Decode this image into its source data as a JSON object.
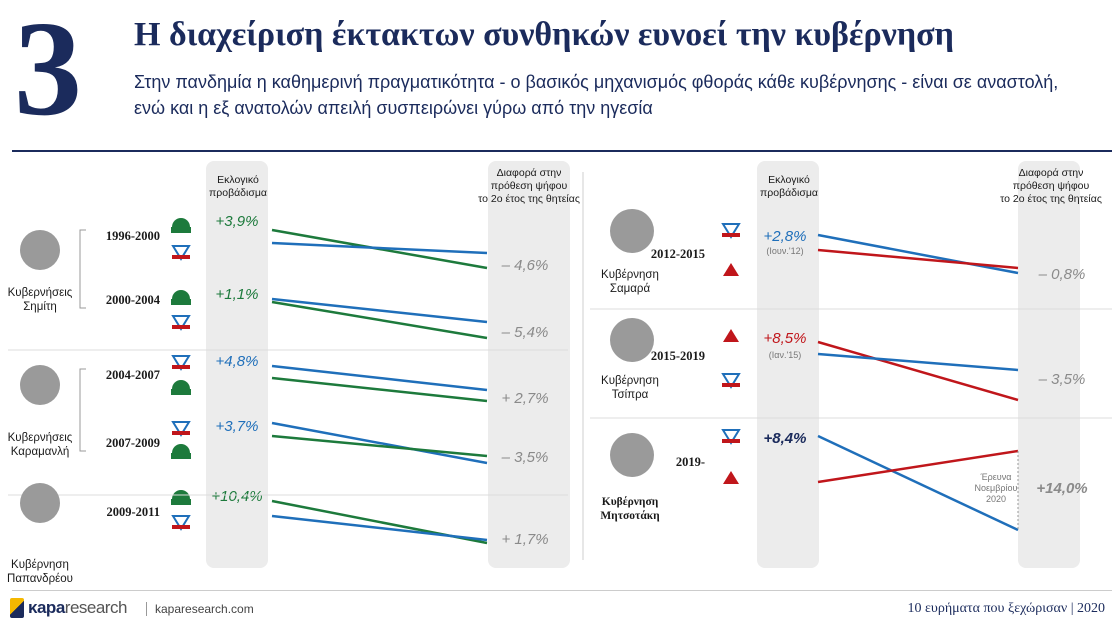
{
  "header": {
    "number": "3",
    "title": "Η διαχείριση έκτακτων συνθηκών ευνοεί την κυβέρνηση",
    "subtitle": "Στην πανδημία η καθημερινή πραγματικότητα - ο βασικός μηχανισμός φθοράς κάθε κυβέρνησης - είναι σε αναστολή, ενώ και η εξ ανατολών απειλή συσπειρώνει γύρω από την ηγεσία"
  },
  "columns": {
    "lead_header": [
      "Εκλογικό",
      "προβάδισμα"
    ],
    "diff_header": [
      "Διαφορά στην",
      "πρόθεση ψήφου",
      "το 2ο έτος της θητείας"
    ]
  },
  "colors": {
    "pasok": "#1d7a3c",
    "nd": "#1f6fba",
    "syriza": "#c0161b",
    "navy": "#1b2b5c",
    "band": "#ececec"
  },
  "chart_data": {
    "type": "slope",
    "left_panel": [
      {
        "government": [
          "Κυβερνήσεις",
          "Σημίτη"
        ],
        "period": "1996-2000",
        "parties": [
          "ΠΑΣΟΚ",
          "ΝΔ"
        ],
        "lead": "+3,9",
        "diff": "– 4,6",
        "diff_value": -4.6
      },
      {
        "government": [
          "Κυβερνήσεις",
          "Σημίτη"
        ],
        "period": "2000-2004",
        "parties": [
          "ΠΑΣΟΚ",
          "ΝΔ"
        ],
        "lead": "+1,1",
        "diff": "– 5,4",
        "diff_value": -5.4
      },
      {
        "government": [
          "Κυβερνήσεις",
          "Καραμανλή"
        ],
        "period": "2004-2007",
        "parties": [
          "ΝΔ",
          "ΠΑΣΟΚ"
        ],
        "lead": "+4,8",
        "diff": "+ 2,7",
        "diff_value": 2.7
      },
      {
        "government": [
          "Κυβερνήσεις",
          "Καραμανλή"
        ],
        "period": "2007-2009",
        "parties": [
          "ΝΔ",
          "ΠΑΣΟΚ"
        ],
        "lead": "+3,7",
        "diff": "– 3,5",
        "diff_value": -3.5
      },
      {
        "government": [
          "Κυβέρνηση",
          "Παπανδρέου"
        ],
        "period": "2009-2011",
        "parties": [
          "ΠΑΣΟΚ",
          "ΝΔ"
        ],
        "lead": "+10,4",
        "diff": "+ 1,7",
        "diff_value": 1.7
      }
    ],
    "right_panel": [
      {
        "government": [
          "Κυβέρνηση",
          "Σαμαρά"
        ],
        "period": "2012-2015",
        "parties": [
          "ΝΔ",
          "ΣΥΡΙΖΑ"
        ],
        "lead": "+2,8",
        "lead_note": "(Ιουν.'12)",
        "diff": "– 0,8",
        "diff_value": -0.8
      },
      {
        "government": [
          "Κυβέρνηση",
          "Τσίπρα"
        ],
        "period": "2015-2019",
        "parties": [
          "ΣΥΡΙΖΑ",
          "ΝΔ"
        ],
        "lead": "+8,5",
        "lead_note": "(Ιαν.'15)",
        "diff": "– 3,5",
        "diff_value": -3.5
      },
      {
        "government": [
          "Κυβέρνηση",
          "Μητσοτάκη"
        ],
        "period": "2019-",
        "parties": [
          "ΝΔ",
          "ΣΥΡΙΖΑ"
        ],
        "lead": "+8,4",
        "diff": "+14,0",
        "diff_value": 14.0,
        "diff_note": [
          "Έρευνα",
          "Νοεμβρίου",
          "2020"
        ]
      }
    ]
  },
  "footer": {
    "brand_bold": "κapa",
    "brand_light": "research",
    "site": "kaparesearch.com",
    "right_text": "10 ευρήματα που ξεχώρισαν",
    "year": "2020"
  }
}
